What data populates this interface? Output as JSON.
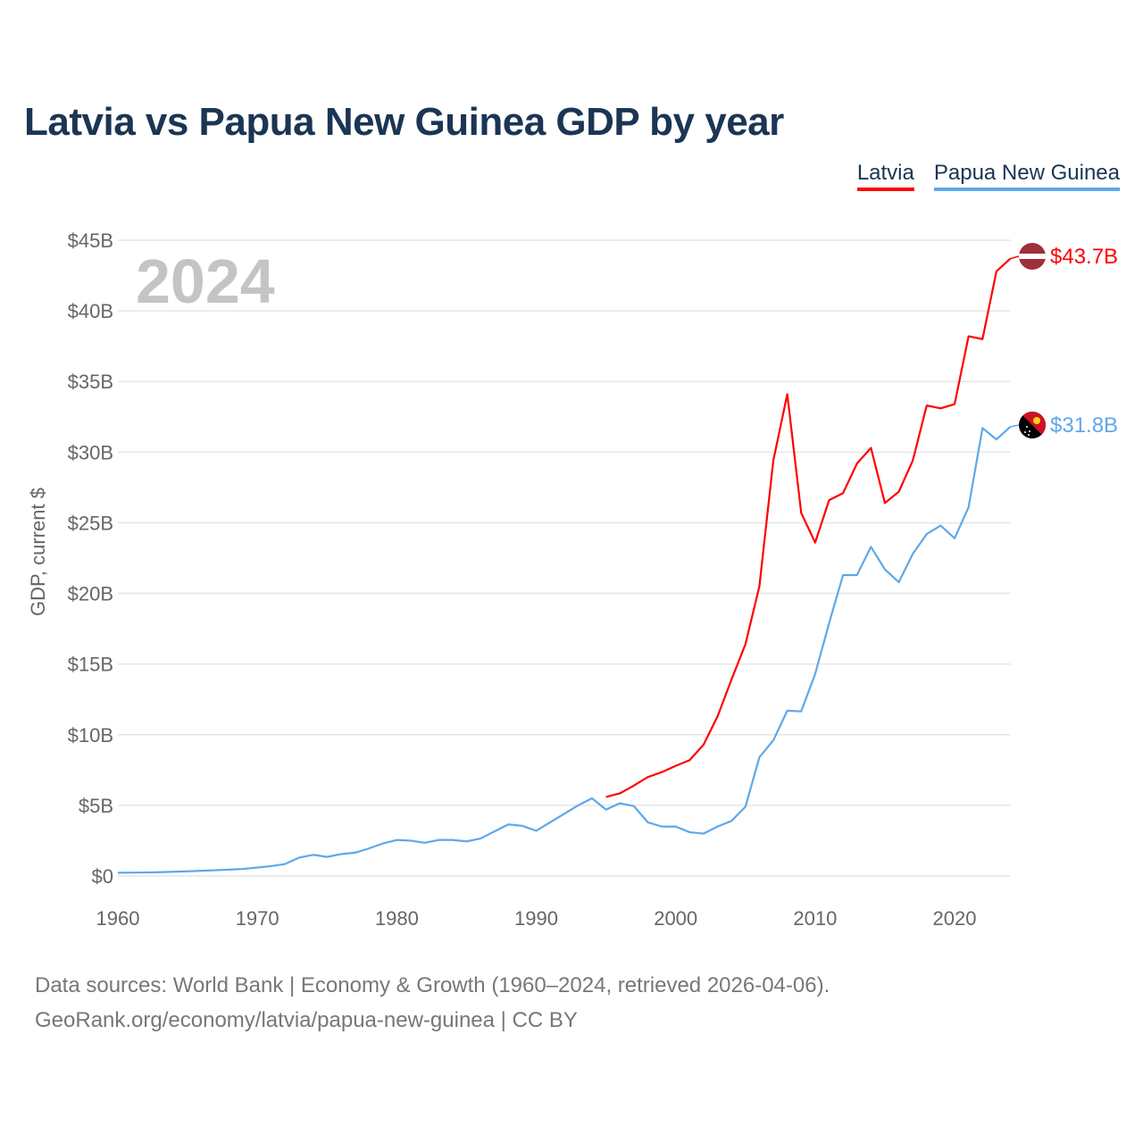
{
  "title": "Latvia vs Papua New Guinea GDP by year",
  "source_line1": "Data sources: World Bank | Economy & Growth (1960–2024, retrieved 2026-04-06).",
  "source_line2": "GeoRank.org/economy/latvia/papua-new-guinea | CC BY",
  "chart_data": {
    "type": "line",
    "title": "Latvia vs Papua New Guinea GDP by year",
    "xlabel": "",
    "ylabel": "GDP, current $",
    "xlim": [
      1960,
      2024
    ],
    "ylim": [
      0,
      45
    ],
    "year_overlay": "2024",
    "x_ticks": [
      1960,
      1970,
      1980,
      1990,
      2000,
      2010,
      2020
    ],
    "y_ticks": [
      0,
      5,
      10,
      15,
      20,
      25,
      30,
      35,
      40,
      45
    ],
    "y_tick_labels": [
      "$0",
      "$5B",
      "$10B",
      "$15B",
      "$20B",
      "$25B",
      "$30B",
      "$35B",
      "$40B",
      "$45B"
    ],
    "grid": true,
    "legend_position": "top-right",
    "series": [
      {
        "name": "Latvia",
        "color": "#ff0000",
        "flag": "latvia-flag",
        "end_label": "$43.7B",
        "start_year": 1995,
        "values": [
          5.6,
          5.85,
          6.4,
          7.0,
          7.35,
          7.8,
          8.2,
          9.3,
          11.3,
          13.9,
          16.4,
          20.5,
          29.4,
          34.1,
          25.7,
          23.6,
          26.6,
          27.1,
          29.2,
          30.3,
          26.4,
          27.2,
          29.4,
          33.3,
          33.1,
          33.4,
          38.2,
          38.0,
          42.8,
          43.7
        ]
      },
      {
        "name": "Papua New Guinea",
        "color": "#5ea8ea",
        "flag": "papua-new-guinea-flag",
        "end_label": "$31.8B",
        "start_year": 1960,
        "values": [
          0.23,
          0.24,
          0.25,
          0.27,
          0.3,
          0.33,
          0.37,
          0.41,
          0.45,
          0.5,
          0.6,
          0.7,
          0.85,
          1.3,
          1.5,
          1.35,
          1.55,
          1.65,
          1.95,
          2.3,
          2.55,
          2.5,
          2.35,
          2.55,
          2.55,
          2.45,
          2.65,
          3.15,
          3.65,
          3.55,
          3.2,
          3.8,
          4.4,
          5.0,
          5.5,
          4.7,
          5.15,
          4.95,
          3.8,
          3.5,
          3.5,
          3.1,
          3.0,
          3.5,
          3.9,
          4.9,
          8.4,
          9.6,
          11.7,
          11.65,
          14.3,
          17.9,
          21.3,
          21.3,
          23.3,
          21.7,
          20.8,
          22.8,
          24.2,
          24.8,
          23.9,
          26.1,
          31.7,
          30.9,
          31.8
        ]
      }
    ]
  }
}
